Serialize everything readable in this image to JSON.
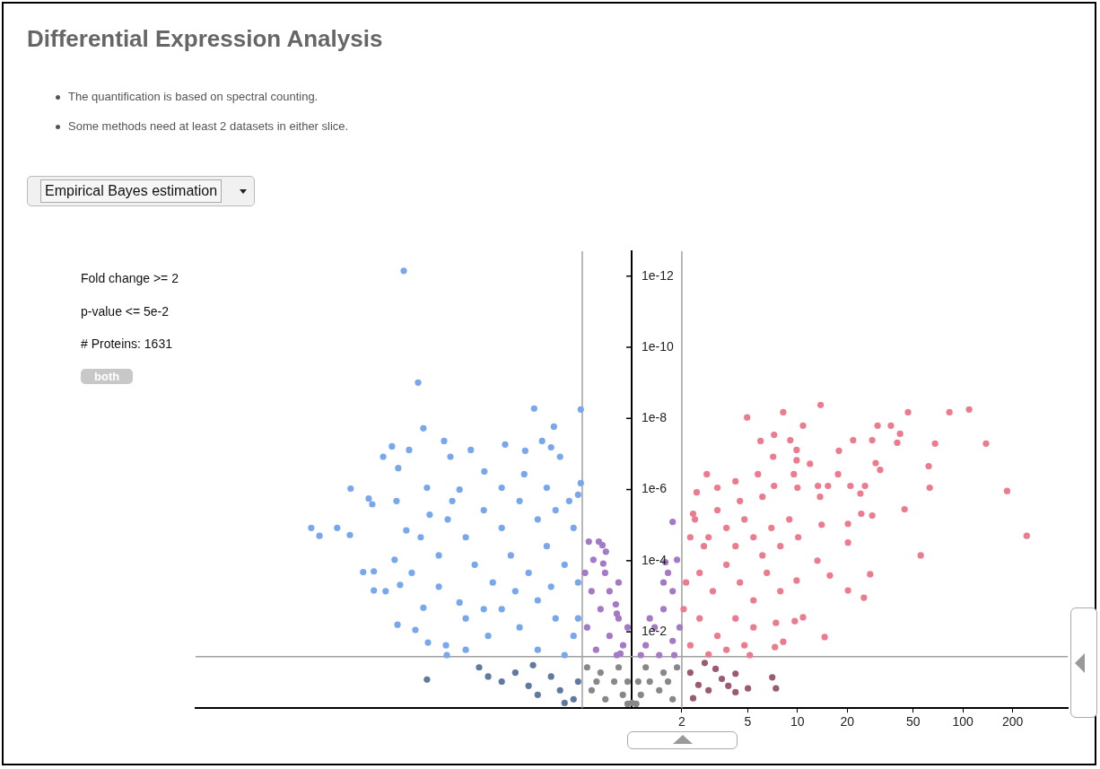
{
  "chart_data": {
    "type": "scatter",
    "title": "Differential Expression Analysis",
    "annotations": [
      "The quantification is based on spectral counting.",
      "Some methods need at least 2 datasets in either slice.",
      "Empirical Bayes estimation",
      "Fold change >= 2",
      "p-value <= 5e-2",
      "# Proteins: 1631",
      "both"
    ],
    "log": "xy",
    "marker": "circle",
    "grid": false,
    "legend": false,
    "xlim": [
      0.0023,
      430
    ],
    "xticks": [
      2,
      5,
      10,
      20,
      50,
      100,
      200
    ],
    "ylim": [
      1.4,
      2e-13
    ],
    "yticks": [
      {
        "value": 0.01,
        "label": "1e-2"
      },
      {
        "value": 0.0001,
        "label": "1e-4"
      },
      {
        "value": 1e-06,
        "label": "1e-6"
      },
      {
        "value": 1e-08,
        "label": "1e-8"
      },
      {
        "value": 1e-10,
        "label": "1e-10"
      },
      {
        "value": 1e-12,
        "label": "1e-12"
      }
    ],
    "ref_lines": [
      {
        "axis": "x",
        "value": 0.5,
        "color": "#a0a0a0"
      },
      {
        "axis": "x",
        "value": 2,
        "color": "#a0a0a0"
      },
      {
        "axis": "y",
        "value": 0.05,
        "color": "#a0a0a0"
      }
    ],
    "series": [
      {
        "color": "#78a8eb",
        "x": [
          0.0417,
          0.0509,
          0.256,
          0.49,
          0.0548,
          0.337,
          0.0731,
          0.286,
          0.0354,
          0.171,
          0.0313,
          0.106,
          0.0449,
          0.324,
          0.367,
          0.0798,
          0.0386,
          0.128,
          0.226,
          0.0199,
          0.0256,
          0.0269,
          0.0377,
          0.0115,
          0.0129,
          0.0165,
          0.0197,
          0.0432,
          0.0237,
          0.0275,
          0.0275,
          0.0324,
          0.0367,
          0.0396,
          0.0382,
          0.049,
          0.0584,
          0.0548,
          0.0759,
          0.0466,
          0.0679,
          0.0906,
          0.075,
          0.0988,
          0.49,
          0.472,
          0.0576,
          0.0906,
          0.0769,
          0.0988,
          0.127,
          0.163,
          0.209,
          0.269,
          0.345,
          0.443,
          0.112,
          0.144,
          0.185,
          0.237,
          0.305,
          0.391,
          0.472,
          0.163,
          0.209,
          0.269,
          0.345,
          0.443,
          0.135,
          0.269,
          0.391,
          0.0988,
          0.0679,
          0.0528,
          0.163,
          0.305,
          0.417,
          0.223,
          0.0819,
          0.0598,
          0.127,
          0.197,
          0.472,
          0.324
        ],
        "values": [
          7.1e-13,
          9.8e-10,
          5.3e-09,
          5.6e-09,
          1.9e-08,
          1.7e-08,
          4.3e-08,
          4.3e-08,
          6.1e-08,
          5.4e-08,
          1.2e-07,
          7.7e-08,
          7.7e-08,
          6.5e-08,
          1.2e-07,
          1.2e-07,
          2.5e-07,
          3.1e-07,
          8.1e-08,
          9.4e-07,
          1.8e-06,
          2.6e-06,
          2.1e-06,
          1.2e-05,
          2e-05,
          1.2e-05,
          1.9e-05,
          1.4e-05,
          0.00021,
          0.0002,
          0.00069,
          0.00072,
          9.4e-05,
          0.00048,
          0.0063,
          0.0089,
          0.02,
          0.0021,
          0.045,
          0.00022,
          0.00054,
          0.0015,
          0.024,
          0.032,
          6.6e-07,
          1.4e-06,
          8.9e-07,
          1e-06,
          6.9e-06,
          2.2e-05,
          3.8e-06,
          1.2e-05,
          2.1e-06,
          6.9e-06,
          3.8e-06,
          1.2e-05,
          0.00013,
          0.00041,
          7.1e-05,
          0.00022,
          3.9e-05,
          0.00013,
          0.00041,
          0.0023,
          0.0075,
          0.0013,
          0.0042,
          0.013,
          0.013,
          0.032,
          0.045,
          0.0042,
          7.1e-05,
          2.2e-05,
          8.9e-07,
          8.9e-07,
          2.1e-06,
          3.7e-07,
          2.1e-06,
          5.1e-06,
          0.0023,
          0.00072,
          0.0042,
          0.00054
        ]
      },
      {
        "color": "#ec7b8d",
        "x": [
          13.8,
          8.2,
          4.96,
          46.6,
          82.9,
          109,
          10.8,
          30.5,
          36.7,
          41.7,
          5.98,
          7.22,
          9.05,
          21.7,
          28.3,
          67.9,
          138,
          40.1,
          9.88,
          17.8,
          7.13,
          9.88,
          11.9,
          29.7,
          62.1,
          31.6,
          2.83,
          5.77,
          9.51,
          17.6,
          4.22,
          7.22,
          13.3,
          15.3,
          20.9,
          25.6,
          63,
          185,
          2.46,
          10,
          24,
          13.7,
          44.4,
          24.3,
          28.3,
          243,
          20.2,
          14,
          20.2,
          55.6,
          13.2,
          15.7,
          27.5,
          20.2,
          25.2,
          9.88,
          10.8,
          9.63,
          14.6,
          7.41,
          8.2,
          7.31,
          5.15,
          2.34,
          2.4,
          2.9,
          3.28,
          3.72,
          4.22,
          4.78,
          5.42,
          6.14,
          6.96,
          7.88,
          2.56,
          3.08,
          3.72,
          4.49,
          5.42,
          6.53,
          7.88,
          2.56,
          3.28,
          4.22,
          5.42,
          2.25,
          2.9,
          3.72,
          4.78,
          2.72,
          3.28,
          4.49,
          8.93,
          10.1,
          2.05,
          2.12,
          6.14,
          2.25
        ],
        "values": [
          4.2e-09,
          6.7e-09,
          9.4e-09,
          6.7e-09,
          6.7e-09,
          5.6e-09,
          1.6e-08,
          1.6e-08,
          1.6e-08,
          2.7e-08,
          4.3e-08,
          2.9e-08,
          4.1e-08,
          4.1e-08,
          4.1e-08,
          5.1e-08,
          5.1e-08,
          4.8e-08,
          7.7e-08,
          8.1e-08,
          1.2e-07,
          1.5e-07,
          1.9e-07,
          1.8e-07,
          2.2e-07,
          2.8e-07,
          3.7e-07,
          3.7e-07,
          3.7e-07,
          3.7e-07,
          5.9e-07,
          7.9e-07,
          7.9e-07,
          7.9e-07,
          7.9e-07,
          7.9e-07,
          8.9e-07,
          1.1e-06,
          1.2e-06,
          8.9e-07,
          1.3e-06,
          1.6e-06,
          3.6e-06,
          4.8e-06,
          5.4e-06,
          2e-05,
          9.2e-06,
          9.8e-06,
          3.1e-05,
          7.1e-05,
          0.0001,
          0.00026,
          0.00024,
          0.00069,
          0.0011,
          0.00036,
          0.0039,
          0.005,
          0.014,
          0.0056,
          0.019,
          0.027,
          0.045,
          4.8e-06,
          6.9e-06,
          2.2e-05,
          3.8e-06,
          1.2e-05,
          3.9e-05,
          6.9e-06,
          2.2e-05,
          7.1e-05,
          1.2e-05,
          3.9e-05,
          0.00022,
          0.00072,
          0.00013,
          0.00041,
          0.0013,
          0.00022,
          0.00072,
          0.0042,
          0.013,
          0.0042,
          0.0075,
          0.024,
          0.043,
          0.032,
          0.024,
          3.9e-05,
          8.9e-07,
          2.1e-06,
          6.9e-06,
          2.2e-05,
          0.0023,
          0.00041,
          1.6e-06,
          2.2e-05
        ]
      },
      {
        "color": "#a47ac7",
        "x": [
          0.63,
          0.584,
          0.687,
          0.829,
          0.731,
          0.569,
          0.645,
          0.829,
          0.94,
          0.535,
          0.731,
          0.883,
          0.606,
          0.809,
          0.52,
          0.548,
          0.662,
          0.695,
          0.67,
          0.798,
          0.809,
          0.85,
          1.21,
          1.37,
          1.55,
          1.76,
          1.65,
          1.87,
          1.46,
          1.76,
          1.28,
          1.94,
          1.55,
          1.8,
          1.76,
          1.59,
          1.13
        ],
        "values": [
          2.9e-05,
          9.4e-05,
          0.00022,
          0.00041,
          0.00072,
          0.00072,
          0.0023,
          0.0042,
          0.0075,
          0.0075,
          0.013,
          0.024,
          0.032,
          0.045,
          0.00022,
          2.9e-05,
          3.7e-05,
          5.6e-05,
          0.00012,
          0.0017,
          0.0031,
          0.041,
          0.024,
          0.0075,
          0.0023,
          0.00072,
          0.00022,
          9.4e-05,
          0.045,
          0.018,
          0.0042,
          0.0075,
          0.00041,
          0.045,
          8.1e-06,
          0.00011,
          0.045
        ]
      },
      {
        "color": "#888888",
        "x": [
          0.535,
          0.645,
          0.78,
          0.88,
          0.94,
          1.0,
          1.06,
          1.13,
          1.28,
          1.55,
          1.87,
          0.57,
          0.69,
          0.83,
          1.21,
          1.46,
          1.76,
          0.61,
          1.65,
          0.94,
          1.09
        ],
        "values": [
          0.1,
          0.14,
          0.25,
          0.59,
          1.06,
          1.0,
          1.06,
          0.59,
          0.25,
          0.14,
          0.1,
          0.44,
          0.79,
          0.1,
          0.1,
          0.44,
          0.79,
          0.25,
          0.25,
          0.25,
          0.25
        ]
      },
      {
        "color": "#5f799f",
        "x": [
          0.0576,
          0.119,
          0.135,
          0.163,
          0.197,
          0.237,
          0.269,
          0.324,
          0.367,
          0.443,
          0.472,
          0.252,
          0.391
        ],
        "values": [
          0.22,
          0.1,
          0.18,
          0.25,
          0.14,
          0.33,
          0.59,
          0.18,
          0.44,
          0.79,
          0.25,
          0.087,
          1.0
        ]
      },
      {
        "color": "#9c5a72",
        "x": [
          2.75,
          3.2,
          3.49,
          4.22,
          4.22,
          5.02,
          7.04,
          7.41,
          2.34,
          2.52,
          2.25,
          2.9,
          3.82
        ],
        "values": [
          0.075,
          0.11,
          0.21,
          0.15,
          0.5,
          0.39,
          0.19,
          0.39,
          0.74,
          0.31,
          0.14,
          0.44,
          0.33
        ]
      }
    ]
  }
}
